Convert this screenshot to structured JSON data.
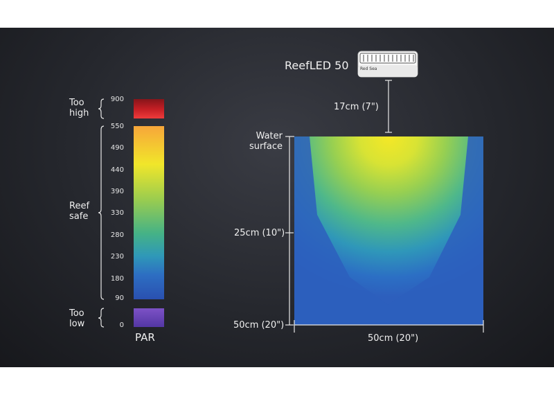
{
  "device": {
    "name": "ReefLED 50",
    "brand": "Red Sea"
  },
  "legend": {
    "too_high_label": "Too\nhigh",
    "reef_safe_label": "Reef\nsafe",
    "too_low_label": "Too\nlow",
    "unit_label": "PAR",
    "ticks": [
      "900",
      "550",
      "490",
      "440",
      "390",
      "330",
      "280",
      "230",
      "180",
      "90",
      "0"
    ],
    "colors": {
      "too_high": [
        "#8a1418",
        "#b51a1f",
        "#d8242a",
        "#ee3a3a"
      ],
      "reef_safe_top": "#f7a63a",
      "yellow": "#f1e62a",
      "green": "#7fc35a",
      "teal": "#2eb0a2",
      "blue": "#2c72c4",
      "deep_blue": "#2a4fb0",
      "too_low": [
        "#7a4fc2",
        "#5a3aa8"
      ]
    }
  },
  "diagram": {
    "mount_height": "17cm (7\")",
    "water_surface_label": "Water\nsurface",
    "depth_mid": "25cm (10\")",
    "depth_bottom": "50cm (20\")",
    "width_label": "50cm (20\")"
  }
}
